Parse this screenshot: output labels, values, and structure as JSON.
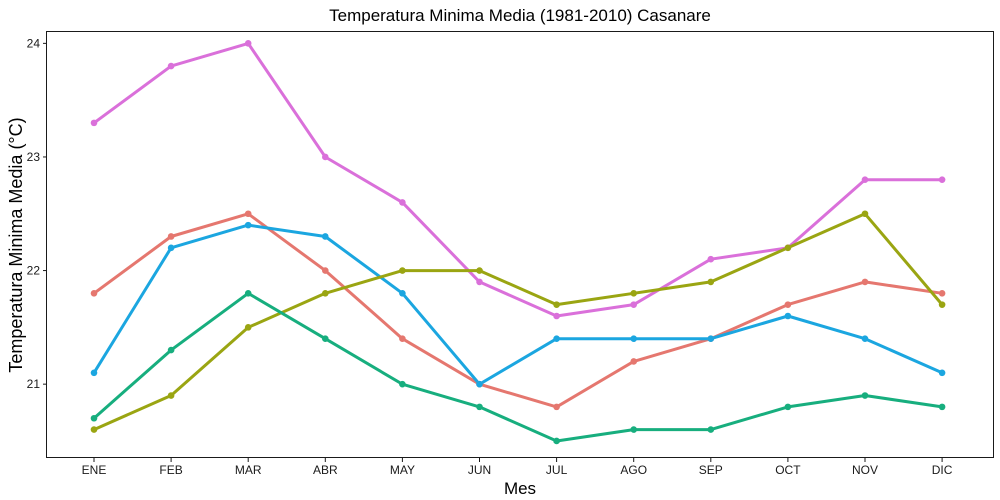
{
  "chart_data": {
    "type": "line",
    "title": "Temperatura Minima Media (1981-2010)  Casanare",
    "xlabel": "Mes",
    "ylabel": "Temperatura Minima Media  (°C)",
    "categories": [
      "ENE",
      "FEB",
      "MAR",
      "ABR",
      "MAY",
      "JUN",
      "JUL",
      "AGO",
      "SEP",
      "OCT",
      "NOV",
      "DIC"
    ],
    "yticks": [
      21,
      22,
      23,
      24
    ],
    "ylim": [
      20.35,
      24.1
    ],
    "grid": false,
    "legend": "none",
    "series": [
      {
        "color": "#DA70DA",
        "values": [
          23.3,
          23.8,
          24.0,
          23.0,
          22.6,
          21.9,
          21.6,
          21.7,
          22.1,
          22.2,
          22.8,
          22.8
        ]
      },
      {
        "color": "#E5776F",
        "values": [
          21.8,
          22.3,
          22.5,
          22.0,
          21.4,
          21.0,
          20.8,
          21.2,
          21.4,
          21.7,
          21.9,
          21.8
        ]
      },
      {
        "color": "#1BA6E0",
        "values": [
          21.1,
          22.2,
          22.4,
          22.3,
          21.8,
          21.0,
          21.4,
          21.4,
          21.4,
          21.6,
          21.4,
          21.1
        ]
      },
      {
        "color": "#9AA512",
        "values": [
          20.6,
          20.9,
          21.5,
          21.8,
          22.0,
          22.0,
          21.7,
          21.8,
          21.9,
          22.2,
          22.5,
          21.7
        ]
      },
      {
        "color": "#17AE7E",
        "values": [
          20.7,
          21.3,
          21.8,
          21.4,
          21.0,
          20.8,
          20.5,
          20.6,
          20.6,
          20.8,
          20.9,
          20.8
        ]
      }
    ]
  }
}
